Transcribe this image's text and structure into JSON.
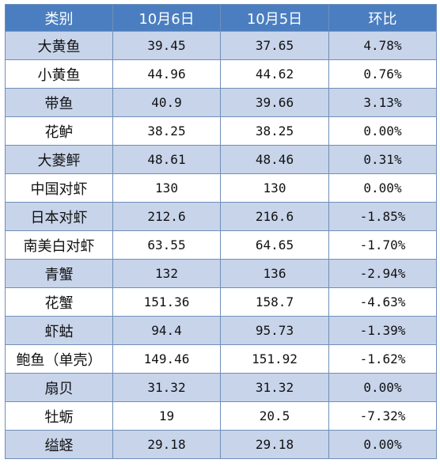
{
  "table": {
    "headers": [
      "类别",
      "10月6日",
      "10月5日",
      "环比"
    ],
    "rows": [
      [
        "大黄鱼",
        "39.45",
        "37.65",
        "4.78%"
      ],
      [
        "小黄鱼",
        "44.96",
        "44.62",
        "0.76%"
      ],
      [
        "带鱼",
        "40.9",
        "39.66",
        "3.13%"
      ],
      [
        "花鲈",
        "38.25",
        "38.25",
        "0.00%"
      ],
      [
        "大菱鲆",
        "48.61",
        "48.46",
        "0.31%"
      ],
      [
        "中国对虾",
        "130",
        "130",
        "0.00%"
      ],
      [
        "日本对虾",
        "212.6",
        "216.6",
        "-1.85%"
      ],
      [
        "南美白对虾",
        "63.55",
        "64.65",
        "-1.70%"
      ],
      [
        "青蟹",
        "132",
        "136",
        "-2.94%"
      ],
      [
        "花蟹",
        "151.36",
        "158.7",
        "-4.63%"
      ],
      [
        "虾蛄",
        "94.4",
        "95.73",
        "-1.39%"
      ],
      [
        "鲍鱼（单壳）",
        "149.46",
        "151.92",
        "-1.62%"
      ],
      [
        "扇贝",
        "31.32",
        "31.32",
        "0.00%"
      ],
      [
        "牡蛎",
        "19",
        "20.5",
        "-7.32%"
      ],
      [
        "缢蛏",
        "29.18",
        "29.18",
        "0.00%"
      ]
    ]
  },
  "colors": {
    "header_bg": "#4a7ec0",
    "band_bg": "#c7d4ea",
    "border": "#6f8fb8"
  }
}
